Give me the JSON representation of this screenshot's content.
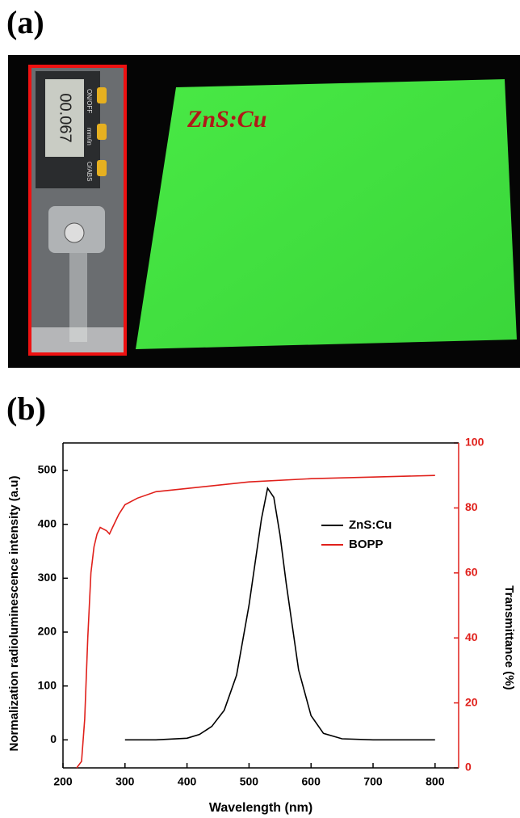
{
  "panel_a": {
    "label": "(a)",
    "caption": "ZnS:Cu",
    "display_reading": "00.067",
    "button_labels": [
      "ON/OFF",
      "mm/in",
      "O/ABS"
    ]
  },
  "chart_data": {
    "type": "line",
    "panel_label": "(b)",
    "xlabel": "Wavelength (nm)",
    "ylabel": "Normalization radioluminescence intensity (a.u)",
    "y2label": "Transmittance (%)",
    "xlim": [
      200,
      838
    ],
    "xticks": [
      200,
      300,
      400,
      500,
      600,
      700,
      800
    ],
    "ylim": [
      -52,
      551
    ],
    "yticks": [
      0,
      100,
      200,
      300,
      400,
      500
    ],
    "y2lim": [
      0,
      100
    ],
    "y2ticks": [
      0,
      20,
      40,
      60,
      80,
      100
    ],
    "legend": "upper right",
    "series": [
      {
        "name": "ZnS:Cu",
        "color": "#000000",
        "x": [
          300,
          350,
          400,
          420,
          440,
          460,
          480,
          500,
          510,
          520,
          530,
          540,
          550,
          560,
          580,
          600,
          620,
          650,
          700,
          800
        ],
        "values": [
          0,
          0,
          3,
          10,
          25,
          55,
          120,
          250,
          330,
          410,
          467,
          450,
          380,
          290,
          130,
          45,
          12,
          2,
          0,
          0
        ]
      },
      {
        "name": "BOPP",
        "color": "#e0201b",
        "axis": "y2",
        "x": [
          222,
          230,
          235,
          240,
          245,
          250,
          255,
          260,
          270,
          275,
          280,
          290,
          300,
          320,
          350,
          400,
          500,
          600,
          700,
          800
        ],
        "values": [
          0,
          2,
          15,
          40,
          60,
          68,
          72,
          74,
          73,
          72,
          74,
          78,
          81,
          83,
          85,
          86,
          88,
          89,
          89.5,
          90
        ]
      }
    ]
  }
}
